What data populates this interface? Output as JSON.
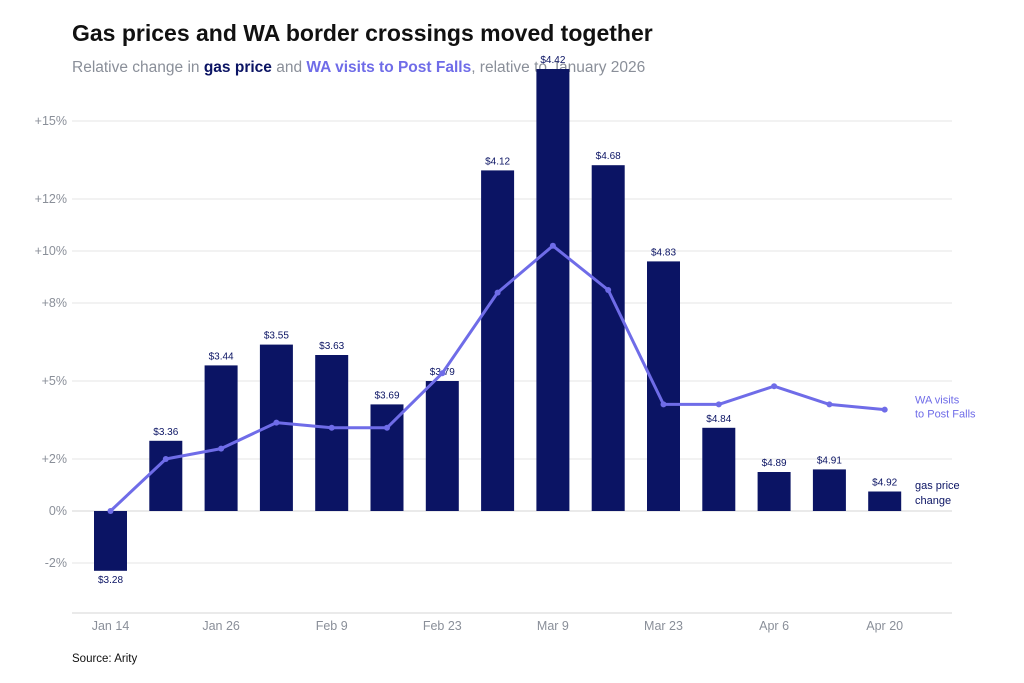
{
  "title": "Gas prices and WA border crossings moved together",
  "subtitle": {
    "prefix": "Relative change in ",
    "series1": "gas price",
    "mid": " and ",
    "series2": "WA visits to Post Falls",
    "suffix": ", relative to January 2026"
  },
  "source": "Source: Arity",
  "colors": {
    "bar": "#0b1464",
    "line": "#6f6ce8",
    "grid": "#e6e6e6",
    "axis_text": "#8a8f99"
  },
  "chart_data": {
    "type": "bar",
    "ylim": [
      -3.5,
      15.5
    ],
    "yticks": [
      -2,
      2,
      5,
      8,
      10,
      12,
      15
    ],
    "ytick_labels": [
      "-2%",
      "+2%",
      "+5%",
      "+8%",
      "+10%",
      "+12%",
      "+15%"
    ],
    "zero_label": "0%",
    "grid": true,
    "x_tick_labels": [
      {
        "index": 0,
        "label": "Jan 14"
      },
      {
        "index": 2,
        "label": "Jan 26"
      },
      {
        "index": 4,
        "label": "Feb 9"
      },
      {
        "index": 6,
        "label": "Feb 23"
      },
      {
        "index": 8,
        "label": "Mar 9"
      },
      {
        "index": 10,
        "label": "Mar 23"
      },
      {
        "index": 12,
        "label": "Apr 6"
      },
      {
        "index": 14,
        "label": "Apr 20"
      }
    ],
    "series": [
      {
        "name": "gas price change",
        "type": "bar",
        "values": [
          -2.3,
          2.7,
          5.6,
          6.4,
          6.0,
          4.1,
          5.0,
          13.1,
          17.0,
          13.3,
          9.6,
          3.2,
          1.5,
          1.6,
          0.75
        ],
        "data_labels": [
          "$3.28",
          "$3.36",
          "$3.44",
          "$3.55",
          "$3.63",
          "$3.69",
          "$3.79",
          "$4.12",
          "$4.42",
          "$4.68",
          "$4.83",
          "$4.84",
          "$4.89",
          "$4.91",
          "$4.92"
        ]
      },
      {
        "name": "WA visits to Post Falls",
        "type": "line",
        "values": [
          0.0,
          2.0,
          2.4,
          3.4,
          3.2,
          3.2,
          5.3,
          8.4,
          10.2,
          8.5,
          4.1,
          4.1,
          4.8,
          4.1,
          3.9
        ]
      }
    ],
    "series_labels": {
      "line": [
        "WA visits",
        "to Post Falls"
      ],
      "bar": [
        "gas price",
        "change"
      ]
    }
  }
}
